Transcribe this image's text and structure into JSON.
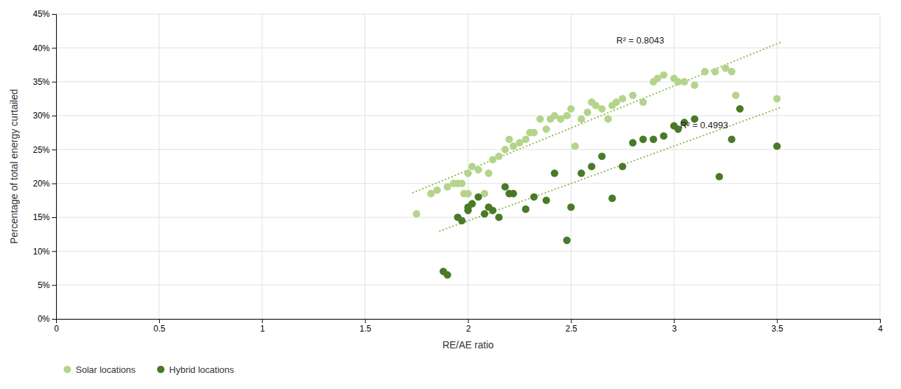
{
  "chart_data": {
    "type": "scatter",
    "xlabel": "RE/AE ratio",
    "ylabel": "Percentage of total energy curtailed",
    "xlim": [
      0,
      4
    ],
    "ylim": [
      0,
      0.45
    ],
    "xticks": [
      0,
      0.5,
      1,
      1.5,
      2,
      2.5,
      3,
      3.5,
      4
    ],
    "yticks": [
      {
        "value": 0,
        "label": "0%"
      },
      {
        "value": 0.05,
        "label": "5%"
      },
      {
        "value": 0.1,
        "label": "10%"
      },
      {
        "value": 0.15,
        "label": "15%"
      },
      {
        "value": 0.2,
        "label": "20%"
      },
      {
        "value": 0.25,
        "label": "25%"
      },
      {
        "value": 0.3,
        "label": "30%"
      },
      {
        "value": 0.35,
        "label": "35%"
      },
      {
        "value": 0.4,
        "label": "40%"
      },
      {
        "value": 0.45,
        "label": "45%"
      }
    ],
    "grid": true,
    "legend": "bottom",
    "series": [
      {
        "name": "Solar locations",
        "type": "scatter",
        "marker": "circle",
        "color": "#b5d48b",
        "x": [
          1.75,
          1.82,
          1.85,
          1.9,
          1.93,
          1.95,
          1.97,
          1.98,
          2.0,
          2.0,
          2.02,
          2.05,
          2.08,
          2.1,
          2.12,
          2.15,
          2.18,
          2.2,
          2.22,
          2.25,
          2.28,
          2.3,
          2.32,
          2.35,
          2.38,
          2.4,
          2.42,
          2.45,
          2.48,
          2.5,
          2.52,
          2.55,
          2.58,
          2.6,
          2.62,
          2.65,
          2.68,
          2.7,
          2.72,
          2.75,
          2.8,
          2.85,
          2.9,
          2.92,
          2.95,
          3.0,
          3.02,
          3.05,
          3.1,
          3.15,
          3.2,
          3.25,
          3.28,
          3.3,
          3.5
        ],
        "values": [
          0.155,
          0.185,
          0.19,
          0.195,
          0.2,
          0.2,
          0.2,
          0.185,
          0.185,
          0.215,
          0.225,
          0.22,
          0.185,
          0.215,
          0.235,
          0.24,
          0.25,
          0.265,
          0.255,
          0.26,
          0.265,
          0.275,
          0.275,
          0.295,
          0.28,
          0.295,
          0.3,
          0.295,
          0.3,
          0.31,
          0.255,
          0.295,
          0.305,
          0.32,
          0.315,
          0.31,
          0.295,
          0.315,
          0.32,
          0.325,
          0.33,
          0.32,
          0.35,
          0.355,
          0.36,
          0.355,
          0.35,
          0.35,
          0.345,
          0.365,
          0.365,
          0.37,
          0.365,
          0.33,
          0.325
        ]
      },
      {
        "name": "Hybrid locations",
        "type": "scatter",
        "marker": "circle",
        "color": "#4a7a28",
        "x": [
          1.88,
          1.9,
          1.95,
          1.97,
          2.0,
          2.0,
          2.02,
          2.05,
          2.08,
          2.1,
          2.12,
          2.15,
          2.18,
          2.2,
          2.22,
          2.28,
          2.32,
          2.38,
          2.42,
          2.48,
          2.5,
          2.55,
          2.6,
          2.65,
          2.7,
          2.75,
          2.8,
          2.85,
          2.9,
          2.95,
          3.0,
          3.02,
          3.05,
          3.1,
          3.22,
          3.28,
          3.32,
          3.5
        ],
        "values": [
          0.07,
          0.065,
          0.15,
          0.145,
          0.16,
          0.165,
          0.17,
          0.18,
          0.155,
          0.165,
          0.16,
          0.15,
          0.195,
          0.185,
          0.185,
          0.162,
          0.18,
          0.175,
          0.215,
          0.116,
          0.165,
          0.215,
          0.225,
          0.24,
          0.178,
          0.225,
          0.26,
          0.265,
          0.265,
          0.27,
          0.285,
          0.28,
          0.29,
          0.295,
          0.21,
          0.265,
          0.31,
          0.255
        ]
      },
      {
        "type": "line",
        "line_style": "dotted",
        "color": "#8db84a",
        "x": [
          1.73,
          3.52
        ],
        "values": [
          0.186,
          0.4086
        ]
      },
      {
        "type": "line",
        "line_style": "dotted",
        "color": "#8db84a",
        "x": [
          1.86,
          3.52
        ],
        "values": [
          0.1294,
          0.3123
        ]
      }
    ],
    "annotations": [
      {
        "text": "R² = 0.8043",
        "x": 2.72,
        "y": 0.403
      },
      {
        "text": "R² = 0.4993",
        "x": 3.03,
        "y": 0.278
      }
    ]
  }
}
